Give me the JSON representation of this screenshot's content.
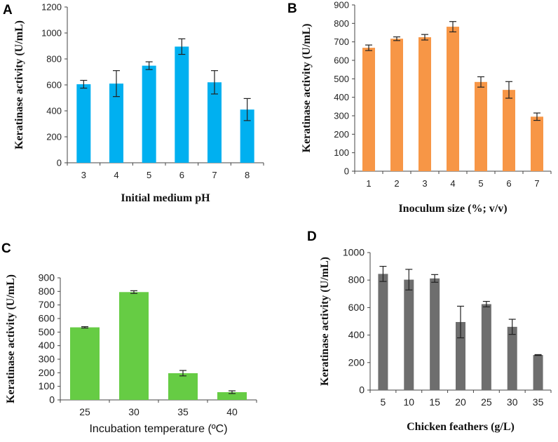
{
  "chart_data": [
    {
      "panel_label": "A",
      "type": "bar",
      "categories": [
        "3",
        "4",
        "5",
        "6",
        "7",
        "8"
      ],
      "values": [
        605,
        610,
        748,
        895,
        620,
        410
      ],
      "errors": [
        30,
        100,
        30,
        60,
        90,
        85
      ],
      "color": "#00b0f0",
      "xlabel": "Initial medium pH",
      "ylabel": "Keratinase activity (U/mL)",
      "ylim": [
        0,
        1200
      ],
      "yticks": [
        0,
        200,
        400,
        600,
        800,
        1000,
        1200
      ],
      "grid": false
    },
    {
      "panel_label": "B",
      "type": "bar",
      "categories": [
        "1",
        "2",
        "3",
        "4",
        "5",
        "6",
        "7"
      ],
      "values": [
        668,
        717,
        725,
        782,
        483,
        440,
        295
      ],
      "errors": [
        15,
        10,
        15,
        28,
        28,
        45,
        20
      ],
      "color": "#f79646",
      "xlabel": "Inoculum size (%; v/v)",
      "ylabel": "Keratinase activity (U/mL)",
      "ylim": [
        0,
        900
      ],
      "yticks": [
        0,
        100,
        200,
        300,
        400,
        500,
        600,
        700,
        800,
        900
      ],
      "grid": false
    },
    {
      "panel_label": "C",
      "type": "bar",
      "categories": [
        "25",
        "30",
        "35",
        "40"
      ],
      "values": [
        535,
        795,
        197,
        57
      ],
      "errors": [
        5,
        10,
        20,
        10
      ],
      "color": "#66cc44",
      "xlabel": "Incubation temperature (ºC)",
      "ylabel": "Keratinase activity (U/mL)",
      "ylim": [
        0,
        900
      ],
      "yticks": [
        0,
        100,
        200,
        300,
        400,
        500,
        600,
        700,
        800,
        900
      ],
      "grid": false
    },
    {
      "panel_label": "D",
      "type": "bar",
      "categories": [
        "5",
        "10",
        "15",
        "20",
        "25",
        "30",
        "35"
      ],
      "values": [
        845,
        803,
        812,
        495,
        625,
        460,
        255
      ],
      "errors": [
        55,
        75,
        28,
        115,
        20,
        55,
        3
      ],
      "color": "#6e6e6e",
      "xlabel": "Chicken feathers (g/L)",
      "ylabel": "Keratinase activity (U/mL)",
      "ylim": [
        0,
        1000
      ],
      "yticks": [
        0,
        200,
        400,
        600,
        800,
        1000
      ],
      "grid": false
    }
  ]
}
